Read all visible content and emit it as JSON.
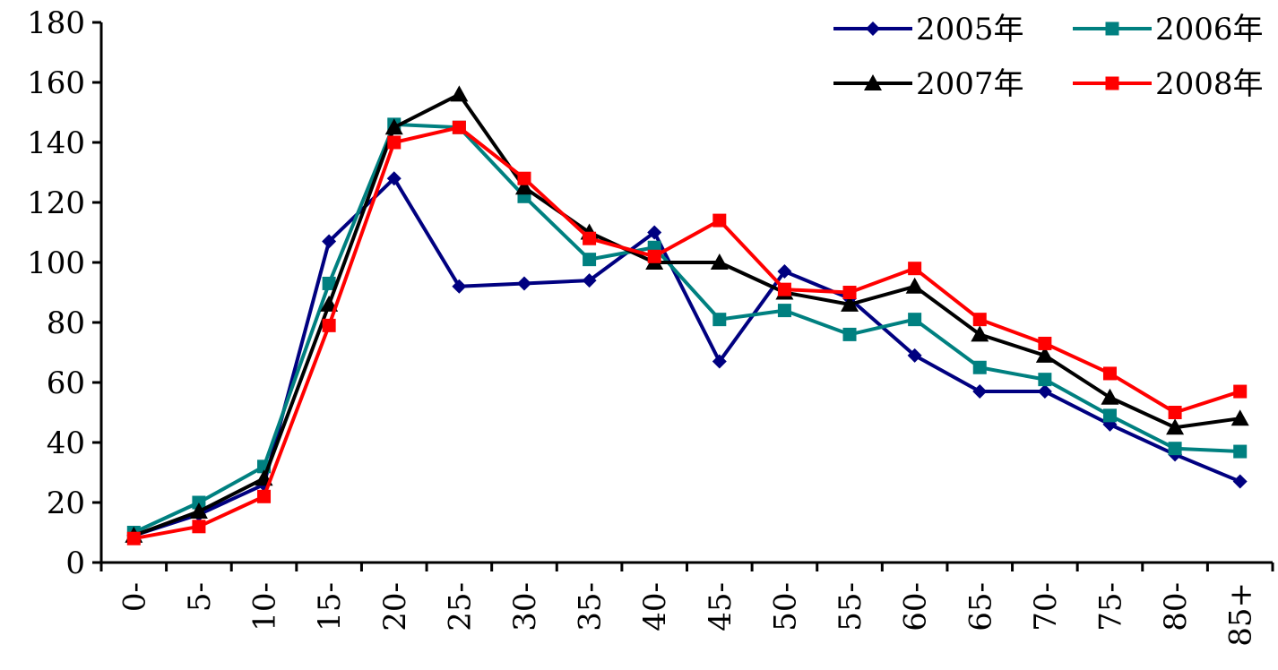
{
  "chart_data": {
    "type": "line",
    "title": "",
    "xlabel": "",
    "ylabel": "",
    "categories": [
      "0-",
      "5-",
      "10-",
      "15-",
      "20-",
      "25-",
      "30-",
      "35-",
      "40-",
      "45-",
      "50-",
      "55-",
      "60-",
      "65-",
      "70-",
      "75-",
      "80-",
      "85+"
    ],
    "ylim": [
      0,
      180
    ],
    "yticks": [
      0,
      20,
      40,
      60,
      80,
      100,
      120,
      140,
      160,
      180
    ],
    "grid": false,
    "legend_position": "top-right",
    "series": [
      {
        "name": "2005年",
        "color": "#000080",
        "marker": "diamond",
        "values": [
          9,
          16,
          26,
          107,
          128,
          92,
          93,
          94,
          110,
          67,
          97,
          88,
          69,
          57,
          57,
          46,
          36,
          27
        ]
      },
      {
        "name": "2006年",
        "color": "#008080",
        "marker": "square",
        "values": [
          10,
          20,
          32,
          93,
          146,
          145,
          122,
          101,
          105,
          81,
          84,
          76,
          81,
          65,
          61,
          49,
          38,
          37
        ]
      },
      {
        "name": "2007年",
        "color": "#000000",
        "marker": "triangle",
        "values": [
          9,
          17,
          28,
          86,
          145,
          156,
          125,
          110,
          100,
          100,
          90,
          86,
          92,
          76,
          69,
          55,
          45,
          48
        ]
      },
      {
        "name": "2008年",
        "color": "#ff0000",
        "marker": "square",
        "values": [
          8,
          12,
          22,
          79,
          140,
          145,
          128,
          108,
          102,
          114,
          91,
          90,
          98,
          81,
          73,
          63,
          50,
          57
        ]
      }
    ]
  }
}
